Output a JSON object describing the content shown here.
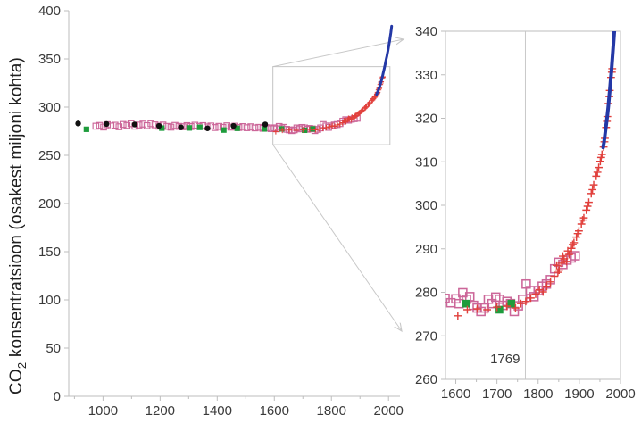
{
  "ylabel": {
    "prefix": "CO",
    "sub": "2",
    "rest": " konsentratsioon (osakest miljoni kohta)"
  },
  "colors": {
    "pink_open_squares": "#CC6699",
    "black_dots": "#111111",
    "green_squares": "#1E9C3C",
    "red_plus_marks": "#E1403C",
    "blue_line": "#2438A6",
    "axis_gray": "#BDBDBD",
    "annotation_gray": "#C8C8C8",
    "tick_text": "#3A3A3A"
  },
  "chart_data": {
    "type": "scatter",
    "title": "",
    "xlabel": "",
    "ylabel": "CO2 konsentratsioon (osakest miljoni kohta)",
    "legend": "none",
    "panels": [
      {
        "id": "main",
        "xlim": [
          880,
          2040
        ],
        "ylim": [
          0,
          400
        ],
        "xticks": [
          1000,
          1200,
          1400,
          1600,
          1800,
          2000
        ],
        "xtick_minor_step": 100,
        "yticks": [
          0,
          50,
          100,
          150,
          200,
          250,
          300,
          350,
          400
        ],
        "zoom_box": {
          "x": [
            1595,
            2005
          ],
          "y": [
            261,
            342
          ]
        }
      },
      {
        "id": "inset",
        "xlim": [
          1575,
          2000
        ],
        "ylim": [
          260,
          340
        ],
        "xticks": [
          1600,
          1700,
          1800,
          1900,
          2000
        ],
        "xtick_minor_step": 50,
        "yticks": [
          260,
          270,
          280,
          290,
          300,
          310,
          320,
          330,
          340
        ],
        "vline": {
          "x": 1769,
          "label": "1769"
        }
      }
    ],
    "series": [
      {
        "name": "pink-open-squares",
        "marker": "open-square",
        "color": "#CC6699",
        "points": [
          [
            975,
            280.2
          ],
          [
            988,
            281
          ],
          [
            1002,
            279.3
          ],
          [
            1015,
            281.8
          ],
          [
            1028,
            280.4
          ],
          [
            1042,
            281.2
          ],
          [
            1056,
            279.6
          ],
          [
            1070,
            282
          ],
          [
            1084,
            281
          ],
          [
            1098,
            282.8
          ],
          [
            1112,
            280.2
          ],
          [
            1126,
            281.4
          ],
          [
            1140,
            282.4
          ],
          [
            1154,
            280.8
          ],
          [
            1168,
            282.8
          ],
          [
            1182,
            281.6
          ],
          [
            1196,
            280.2
          ],
          [
            1210,
            281.4
          ],
          [
            1224,
            280
          ],
          [
            1238,
            279.2
          ],
          [
            1252,
            281
          ],
          [
            1266,
            280
          ],
          [
            1280,
            279.6
          ],
          [
            1294,
            280.8
          ],
          [
            1308,
            279.8
          ],
          [
            1322,
            281.2
          ],
          [
            1336,
            280
          ],
          [
            1350,
            280.8
          ],
          [
            1364,
            279.4
          ],
          [
            1378,
            280.4
          ],
          [
            1392,
            278.8
          ],
          [
            1406,
            280
          ],
          [
            1420,
            279
          ],
          [
            1434,
            280.6
          ],
          [
            1448,
            279.2
          ],
          [
            1462,
            280.2
          ],
          [
            1476,
            278.8
          ],
          [
            1490,
            279.8
          ],
          [
            1504,
            278.6
          ],
          [
            1518,
            279.6
          ],
          [
            1532,
            278.4
          ],
          [
            1546,
            279
          ],
          [
            1560,
            278
          ],
          [
            1574,
            278.6
          ],
          [
            1588,
            277.6
          ],
          [
            1600,
            278.5
          ],
          [
            1608,
            277.4
          ],
          [
            1617,
            279.9
          ],
          [
            1626,
            278.4
          ],
          [
            1634,
            279
          ],
          [
            1643,
            277
          ],
          [
            1652,
            276.4
          ],
          [
            1661,
            275.6
          ],
          [
            1670,
            276.4
          ],
          [
            1679,
            278.4
          ],
          [
            1688,
            277.4
          ],
          [
            1697,
            278.9
          ],
          [
            1706,
            278.4
          ],
          [
            1715,
            277
          ],
          [
            1724,
            277.9
          ],
          [
            1733,
            277.4
          ],
          [
            1742,
            275.6
          ],
          [
            1752,
            276.9
          ],
          [
            1762,
            278.4
          ],
          [
            1771,
            281.9
          ],
          [
            1781,
            280.4
          ],
          [
            1790,
            279
          ],
          [
            1800,
            280.4
          ],
          [
            1810,
            281.4
          ],
          [
            1820,
            281.9
          ],
          [
            1830,
            282.9
          ],
          [
            1840,
            285.4
          ],
          [
            1850,
            286.9
          ],
          [
            1860,
            286.4
          ],
          [
            1870,
            287.4
          ],
          [
            1880,
            287.9
          ],
          [
            1890,
            288.4
          ]
        ]
      },
      {
        "name": "green-squares",
        "marker": "filled-square",
        "color": "#1E9C3C",
        "points": [
          [
            942,
            277
          ],
          [
            1206,
            278.2
          ],
          [
            1302,
            278.4
          ],
          [
            1339,
            279
          ],
          [
            1423,
            276.2
          ],
          [
            1470,
            278
          ],
          [
            1565,
            277.4
          ],
          [
            1625,
            277.4
          ],
          [
            1706,
            276
          ],
          [
            1735,
            277.4
          ]
        ]
      },
      {
        "name": "black-dots",
        "marker": "dot",
        "color": "#111111",
        "points": [
          [
            913,
            283
          ],
          [
            1012,
            282.5
          ],
          [
            1111,
            282
          ],
          [
            1196,
            280.5
          ],
          [
            1273,
            279
          ],
          [
            1366,
            278
          ],
          [
            1457,
            280.5
          ],
          [
            1568,
            282
          ]
        ]
      },
      {
        "name": "red-plus-marks",
        "marker": "plus",
        "color": "#E1403C",
        "points": [
          [
            1605,
            274.6
          ],
          [
            1628,
            276
          ],
          [
            1652,
            276.2
          ],
          [
            1676,
            276
          ],
          [
            1700,
            276.6
          ],
          [
            1724,
            276.8
          ],
          [
            1745,
            276.4
          ],
          [
            1758,
            277.4
          ],
          [
            1770,
            277.9
          ],
          [
            1782,
            278.7
          ],
          [
            1794,
            279.6
          ],
          [
            1803,
            280.6
          ],
          [
            1812,
            280.1
          ],
          [
            1821,
            281.4
          ],
          [
            1830,
            282.4
          ],
          [
            1839,
            283.7
          ],
          [
            1845,
            286.2
          ],
          [
            1848,
            284.6
          ],
          [
            1851,
            285.1
          ],
          [
            1857,
            286.7
          ],
          [
            1860,
            288.3
          ],
          [
            1863,
            287.7
          ],
          [
            1869,
            287.1
          ],
          [
            1872,
            289.5
          ],
          [
            1875,
            288.7
          ],
          [
            1881,
            290.1
          ],
          [
            1884,
            291
          ],
          [
            1887,
            291.4
          ],
          [
            1893,
            292.7
          ],
          [
            1896,
            293.5
          ],
          [
            1899,
            294.1
          ],
          [
            1905,
            295.7
          ],
          [
            1908,
            296.6
          ],
          [
            1911,
            297.1
          ],
          [
            1917,
            298.9
          ],
          [
            1920,
            299.8
          ],
          [
            1923,
            300.7
          ],
          [
            1929,
            302.7
          ],
          [
            1932,
            303.6
          ],
          [
            1935,
            304.7
          ],
          [
            1941,
            306.7
          ],
          [
            1944,
            307.6
          ],
          [
            1947,
            308.7
          ],
          [
            1951,
            310.1
          ],
          [
            1953,
            311
          ],
          [
            1955,
            311.7
          ],
          [
            1959,
            313.4
          ],
          [
            1961,
            314.6
          ],
          [
            1962,
            315.4
          ],
          [
            1965,
            317.9
          ],
          [
            1967,
            319.3
          ],
          [
            1968,
            320.4
          ],
          [
            1971,
            323.4
          ],
          [
            1973,
            325
          ],
          [
            1974,
            326.4
          ],
          [
            1977,
            329.4
          ],
          [
            1979,
            330.6
          ],
          [
            1980,
            331.4
          ]
        ]
      },
      {
        "name": "blue-line",
        "marker": "line",
        "color": "#2438A6",
        "points": [
          [
            1958,
            313.3
          ],
          [
            1960,
            314.6
          ],
          [
            1962,
            316.1
          ],
          [
            1964,
            317.6
          ],
          [
            1966,
            319
          ],
          [
            1968,
            320.5
          ],
          [
            1970,
            322.4
          ],
          [
            1972,
            324.4
          ],
          [
            1974,
            326.4
          ],
          [
            1976,
            328.6
          ],
          [
            1978,
            331
          ],
          [
            1980,
            333.5
          ],
          [
            1982,
            336
          ],
          [
            1984,
            338.6
          ],
          [
            1986,
            341.2
          ],
          [
            1988,
            344.2
          ],
          [
            1990,
            347.2
          ],
          [
            1992,
            349.8
          ],
          [
            1994,
            352.6
          ],
          [
            1996,
            355.6
          ],
          [
            1998,
            358.8
          ],
          [
            2000,
            362
          ],
          [
            2002,
            365.4
          ],
          [
            2004,
            369
          ],
          [
            2006,
            373
          ],
          [
            2008,
            377.2
          ],
          [
            2010,
            381.6
          ],
          [
            2011,
            384
          ]
        ]
      }
    ]
  }
}
